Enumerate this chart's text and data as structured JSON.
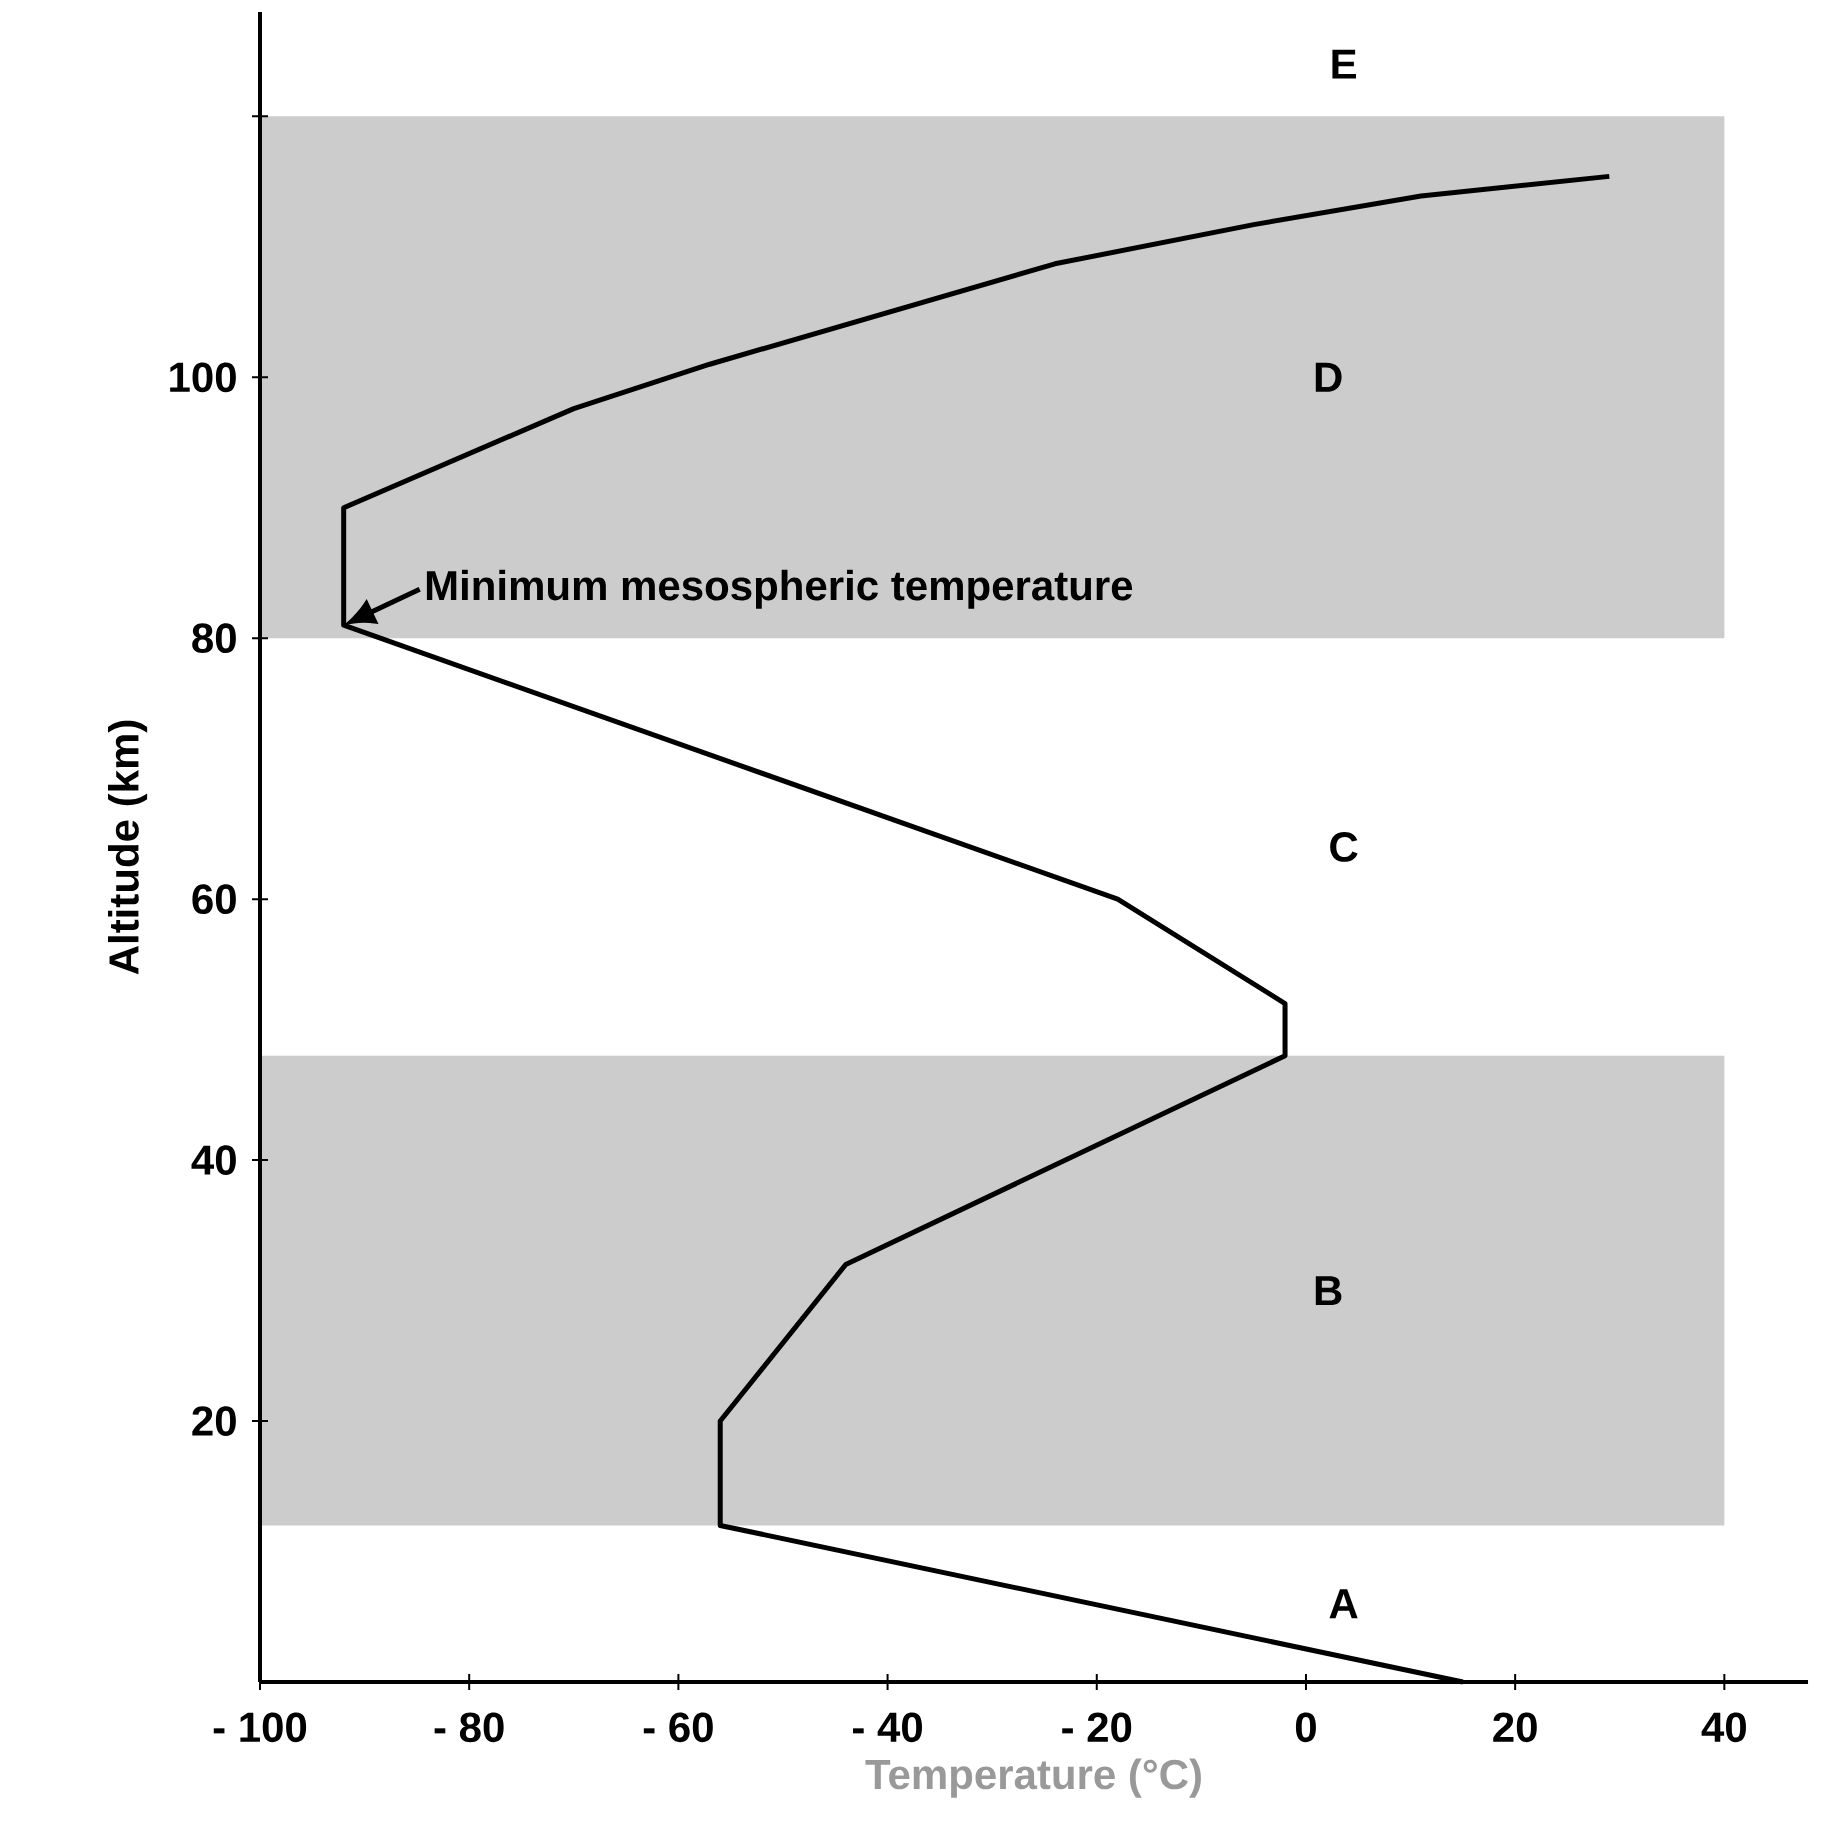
{
  "chart_data": {
    "type": "line",
    "xlabel": "Temperature (°C)",
    "ylabel": "Altitude (km)",
    "x": [
      15,
      -56,
      -56,
      -44,
      -2,
      -2,
      -18,
      -92,
      -92,
      -70,
      -57,
      -24,
      -5,
      11,
      29
    ],
    "values": [
      0,
      12,
      20,
      32,
      48,
      52,
      60,
      81,
      90,
      97.6,
      101,
      108.7,
      111.7,
      113.9,
      115.4
    ],
    "color": "#000000",
    "xlim": [
      -100,
      48
    ],
    "ylim": [
      0,
      128
    ],
    "xticks": [
      {
        "value": -100,
        "label": "- 100"
      },
      {
        "value": -80,
        "label": "- 80"
      },
      {
        "value": -60,
        "label": "- 60"
      },
      {
        "value": -40,
        "label": "- 40"
      },
      {
        "value": -20,
        "label": "- 20"
      },
      0,
      20,
      40
    ],
    "yticks": [
      20,
      40,
      60,
      80,
      100,
      {
        "value": 120,
        "label": null
      }
    ],
    "bands": [
      {
        "axis": "y",
        "from": 12,
        "to": 48,
        "label": "B",
        "color": "#cccccc"
      },
      {
        "axis": "y",
        "from": 80,
        "to": 120,
        "label": "D",
        "color": "#cccccc"
      }
    ],
    "annotations": [
      "A",
      "C",
      "E",
      {
        "text": "Minimum mesospheric temperature",
        "x": -92,
        "y": 81
      }
    ]
  }
}
